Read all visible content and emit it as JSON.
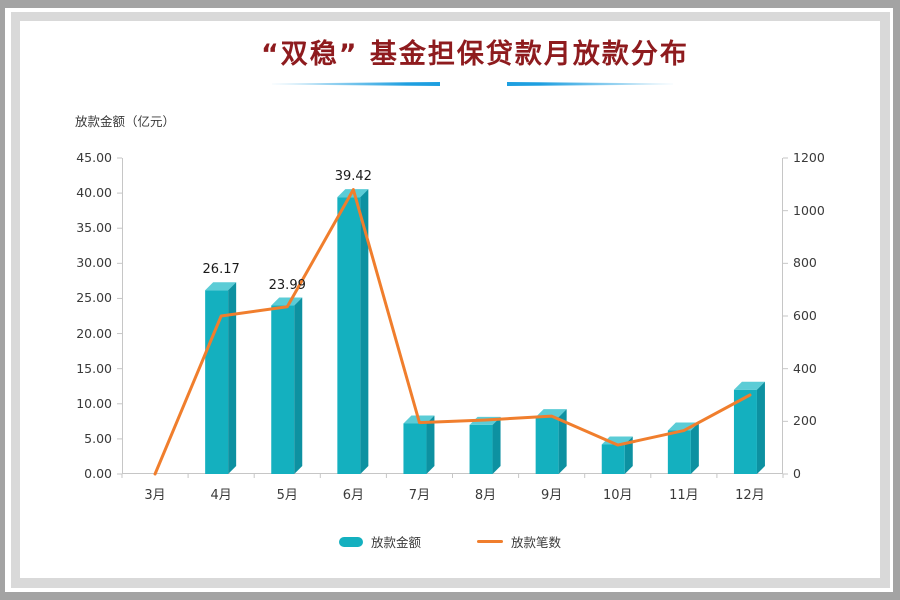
{
  "title": {
    "text": "“双稳” 基金担保贷款月放款分布"
  },
  "left_axis_title": "放款金额（亿元）",
  "chart_data": {
    "type": "combo",
    "title": "“双稳” 基金担保贷款月放款分布",
    "categories": [
      "3月",
      "4月",
      "5月",
      "6月",
      "7月",
      "8月",
      "9月",
      "10月",
      "11月",
      "12月"
    ],
    "series": [
      {
        "name": "放款金额",
        "type": "bar",
        "axis": "left",
        "unit": "亿元",
        "values": [
          0,
          26.17,
          23.99,
          39.42,
          7.2,
          7.0,
          8.1,
          4.2,
          6.2,
          12.0
        ]
      },
      {
        "name": "放款笔数",
        "type": "line",
        "axis": "right",
        "values": [
          0,
          600,
          635,
          1080,
          195,
          205,
          220,
          110,
          165,
          300
        ]
      }
    ],
    "data_labels": [
      {
        "category_index": 1,
        "text": "26.17"
      },
      {
        "category_index": 2,
        "text": "23.99"
      },
      {
        "category_index": 3,
        "text": "39.42"
      }
    ],
    "left_axis": {
      "title": "放款金额（亿元）",
      "min": 0,
      "max": 45,
      "step": 5,
      "decimals": 2
    },
    "right_axis": {
      "min": 0,
      "max": 1200,
      "step": 200,
      "decimals": 0
    },
    "grid": false,
    "legend": {
      "position": "bottom",
      "items": [
        "放款金额",
        "放款笔数"
      ]
    },
    "colors": {
      "bar_front": "#14b0bf",
      "bar_top": "#5bccd6",
      "bar_side": "#0d91a1",
      "line": "#f07e2d",
      "axis": "#c6c6c6",
      "title": "#8e1b1e",
      "underline": "#1e9fe0"
    }
  }
}
